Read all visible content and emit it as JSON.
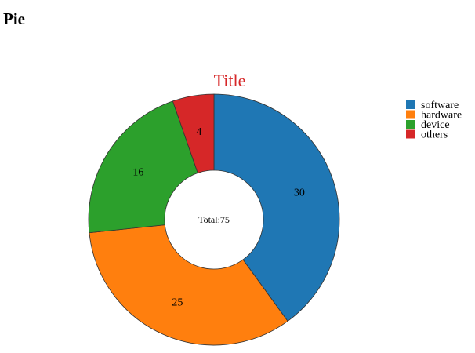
{
  "page": {
    "heading": "Pie"
  },
  "chart_data": {
    "type": "pie",
    "title": "Title",
    "title_color": "#d62728",
    "donut": true,
    "center_label": "Total:75",
    "total": 75,
    "legend_position": "top-right",
    "categories": [
      "software",
      "hardware",
      "device",
      "others"
    ],
    "values": [
      30,
      25,
      16,
      4
    ],
    "colors": [
      "#1f77b4",
      "#ff7f0e",
      "#2ca02c",
      "#d62728"
    ]
  }
}
